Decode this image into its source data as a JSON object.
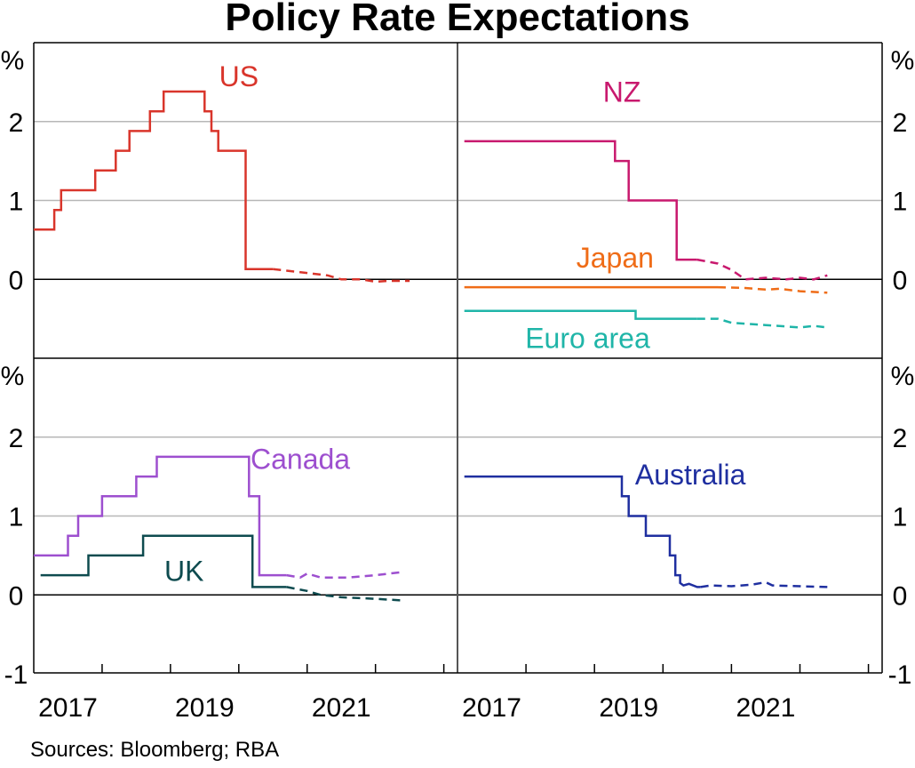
{
  "title": "Policy Rate Expectations",
  "source": "Sources: Bloomberg; RBA",
  "colors": {
    "US": "#d9352b",
    "NZ": "#c8196e",
    "Japan": "#ef6c17",
    "Euro area": "#1fb5a8",
    "Canada": "#9d4fcf",
    "UK": "#0e4b4f",
    "Australia": "#1f2fa0",
    "grid": "#b7b7b7",
    "axis": "#000000"
  },
  "axis": {
    "unit": "%",
    "top_ticks": [
      "2",
      "1",
      "0"
    ],
    "bottom_ticks": [
      "2",
      "1",
      "0",
      "-1"
    ],
    "x_ticks": [
      "2017",
      "2019",
      "2021"
    ]
  },
  "chart_data": [
    {
      "panel": "top-left",
      "type": "line",
      "ylim": [
        -1,
        3
      ],
      "ylabel": "%",
      "series": [
        {
          "name": "US",
          "actual": [
            [
              2016.0,
              0.63
            ],
            [
              2016.3,
              0.63
            ],
            [
              2016.3,
              0.88
            ],
            [
              2016.4,
              0.88
            ],
            [
              2016.4,
              1.13
            ],
            [
              2016.9,
              1.13
            ],
            [
              2016.9,
              1.38
            ],
            [
              2017.2,
              1.38
            ],
            [
              2017.2,
              1.63
            ],
            [
              2017.4,
              1.63
            ],
            [
              2017.4,
              1.88
            ],
            [
              2017.7,
              1.88
            ],
            [
              2017.7,
              2.13
            ],
            [
              2017.9,
              2.13
            ],
            [
              2017.9,
              2.38
            ],
            [
              2018.5,
              2.38
            ],
            [
              2018.5,
              2.13
            ],
            [
              2018.6,
              2.13
            ],
            [
              2018.6,
              1.88
            ],
            [
              2018.7,
              1.88
            ],
            [
              2018.7,
              1.63
            ],
            [
              2019.1,
              1.63
            ],
            [
              2019.1,
              0.13
            ],
            [
              2019.5,
              0.13
            ]
          ],
          "expected": [
            [
              2019.5,
              0.13
            ],
            [
              2019.7,
              0.11
            ],
            [
              2020.0,
              0.08
            ],
            [
              2020.3,
              0.05
            ],
            [
              2020.5,
              0.0
            ],
            [
              2020.8,
              0.0
            ],
            [
              2021.0,
              -0.03
            ],
            [
              2021.2,
              -0.02
            ],
            [
              2021.5,
              -0.02
            ]
          ]
        }
      ]
    },
    {
      "panel": "top-right",
      "type": "line",
      "ylim": [
        -1,
        3
      ],
      "ylabel": "%",
      "series": [
        {
          "name": "NZ",
          "actual": [
            [
              2016.1,
              1.75
            ],
            [
              2018.3,
              1.75
            ],
            [
              2018.3,
              1.5
            ],
            [
              2018.5,
              1.5
            ],
            [
              2018.5,
              1.0
            ],
            [
              2019.2,
              1.0
            ],
            [
              2019.2,
              0.25
            ],
            [
              2019.5,
              0.25
            ]
          ],
          "expected": [
            [
              2019.5,
              0.25
            ],
            [
              2019.8,
              0.2
            ],
            [
              2020.0,
              0.12
            ],
            [
              2020.2,
              0.0
            ],
            [
              2020.5,
              0.02
            ],
            [
              2020.8,
              0.0
            ],
            [
              2021.0,
              0.02
            ],
            [
              2021.2,
              0.0
            ],
            [
              2021.4,
              0.05
            ]
          ]
        },
        {
          "name": "Japan",
          "actual": [
            [
              2016.1,
              -0.1
            ],
            [
              2019.8,
              -0.1
            ]
          ],
          "expected": [
            [
              2019.8,
              -0.1
            ],
            [
              2020.2,
              -0.11
            ],
            [
              2020.5,
              -0.13
            ],
            [
              2020.7,
              -0.12
            ],
            [
              2021.0,
              -0.15
            ],
            [
              2021.4,
              -0.17
            ]
          ]
        },
        {
          "name": "Euro area",
          "actual": [
            [
              2016.1,
              -0.4
            ],
            [
              2018.6,
              -0.4
            ],
            [
              2018.6,
              -0.5
            ],
            [
              2019.5,
              -0.5
            ]
          ],
          "expected": [
            [
              2019.5,
              -0.5
            ],
            [
              2019.8,
              -0.5
            ],
            [
              2020.0,
              -0.55
            ],
            [
              2020.5,
              -0.58
            ],
            [
              2021.0,
              -0.61
            ],
            [
              2021.2,
              -0.59
            ],
            [
              2021.4,
              -0.61
            ]
          ]
        }
      ]
    },
    {
      "panel": "bottom-left",
      "type": "line",
      "ylim": [
        -1,
        3
      ],
      "ylabel": "%",
      "series": [
        {
          "name": "Canada",
          "actual": [
            [
              2016.0,
              0.5
            ],
            [
              2016.5,
              0.5
            ],
            [
              2016.5,
              0.75
            ],
            [
              2016.65,
              0.75
            ],
            [
              2016.65,
              1.0
            ],
            [
              2017.0,
              1.0
            ],
            [
              2017.0,
              1.25
            ],
            [
              2017.5,
              1.25
            ],
            [
              2017.5,
              1.5
            ],
            [
              2017.8,
              1.5
            ],
            [
              2017.8,
              1.75
            ],
            [
              2019.15,
              1.75
            ],
            [
              2019.15,
              1.25
            ],
            [
              2019.3,
              1.25
            ],
            [
              2019.3,
              0.25
            ],
            [
              2019.7,
              0.25
            ]
          ],
          "expected": [
            [
              2019.7,
              0.25
            ],
            [
              2019.9,
              0.22
            ],
            [
              2020.0,
              0.27
            ],
            [
              2020.2,
              0.22
            ],
            [
              2020.6,
              0.22
            ],
            [
              2021.0,
              0.25
            ],
            [
              2021.4,
              0.29
            ]
          ]
        },
        {
          "name": "UK",
          "actual": [
            [
              2016.1,
              0.25
            ],
            [
              2016.8,
              0.25
            ],
            [
              2016.8,
              0.5
            ],
            [
              2017.6,
              0.5
            ],
            [
              2017.6,
              0.75
            ],
            [
              2019.2,
              0.75
            ],
            [
              2019.2,
              0.1
            ],
            [
              2019.7,
              0.1
            ]
          ],
          "expected": [
            [
              2019.7,
              0.1
            ],
            [
              2020.0,
              0.05
            ],
            [
              2020.2,
              0.0
            ],
            [
              2020.5,
              -0.03
            ],
            [
              2021.0,
              -0.05
            ],
            [
              2021.4,
              -0.07
            ]
          ]
        }
      ]
    },
    {
      "panel": "bottom-right",
      "type": "line",
      "ylim": [
        -1,
        3
      ],
      "ylabel": "%",
      "series": [
        {
          "name": "Australia",
          "actual": [
            [
              2016.1,
              1.5
            ],
            [
              2018.4,
              1.5
            ],
            [
              2018.4,
              1.25
            ],
            [
              2018.5,
              1.25
            ],
            [
              2018.5,
              1.0
            ],
            [
              2018.75,
              1.0
            ],
            [
              2018.75,
              0.75
            ],
            [
              2019.1,
              0.75
            ],
            [
              2019.1,
              0.5
            ],
            [
              2019.18,
              0.5
            ],
            [
              2019.18,
              0.25
            ],
            [
              2019.25,
              0.25
            ],
            [
              2019.25,
              0.15
            ],
            [
              2019.3,
              0.12
            ],
            [
              2019.38,
              0.14
            ],
            [
              2019.5,
              0.1
            ],
            [
              2019.55,
              0.1
            ]
          ],
          "expected": [
            [
              2019.55,
              0.1
            ],
            [
              2019.7,
              0.12
            ],
            [
              2020.0,
              0.11
            ],
            [
              2020.3,
              0.13
            ],
            [
              2020.5,
              0.16
            ],
            [
              2020.6,
              0.12
            ],
            [
              2021.0,
              0.11
            ],
            [
              2021.4,
              0.1
            ]
          ]
        }
      ]
    }
  ]
}
